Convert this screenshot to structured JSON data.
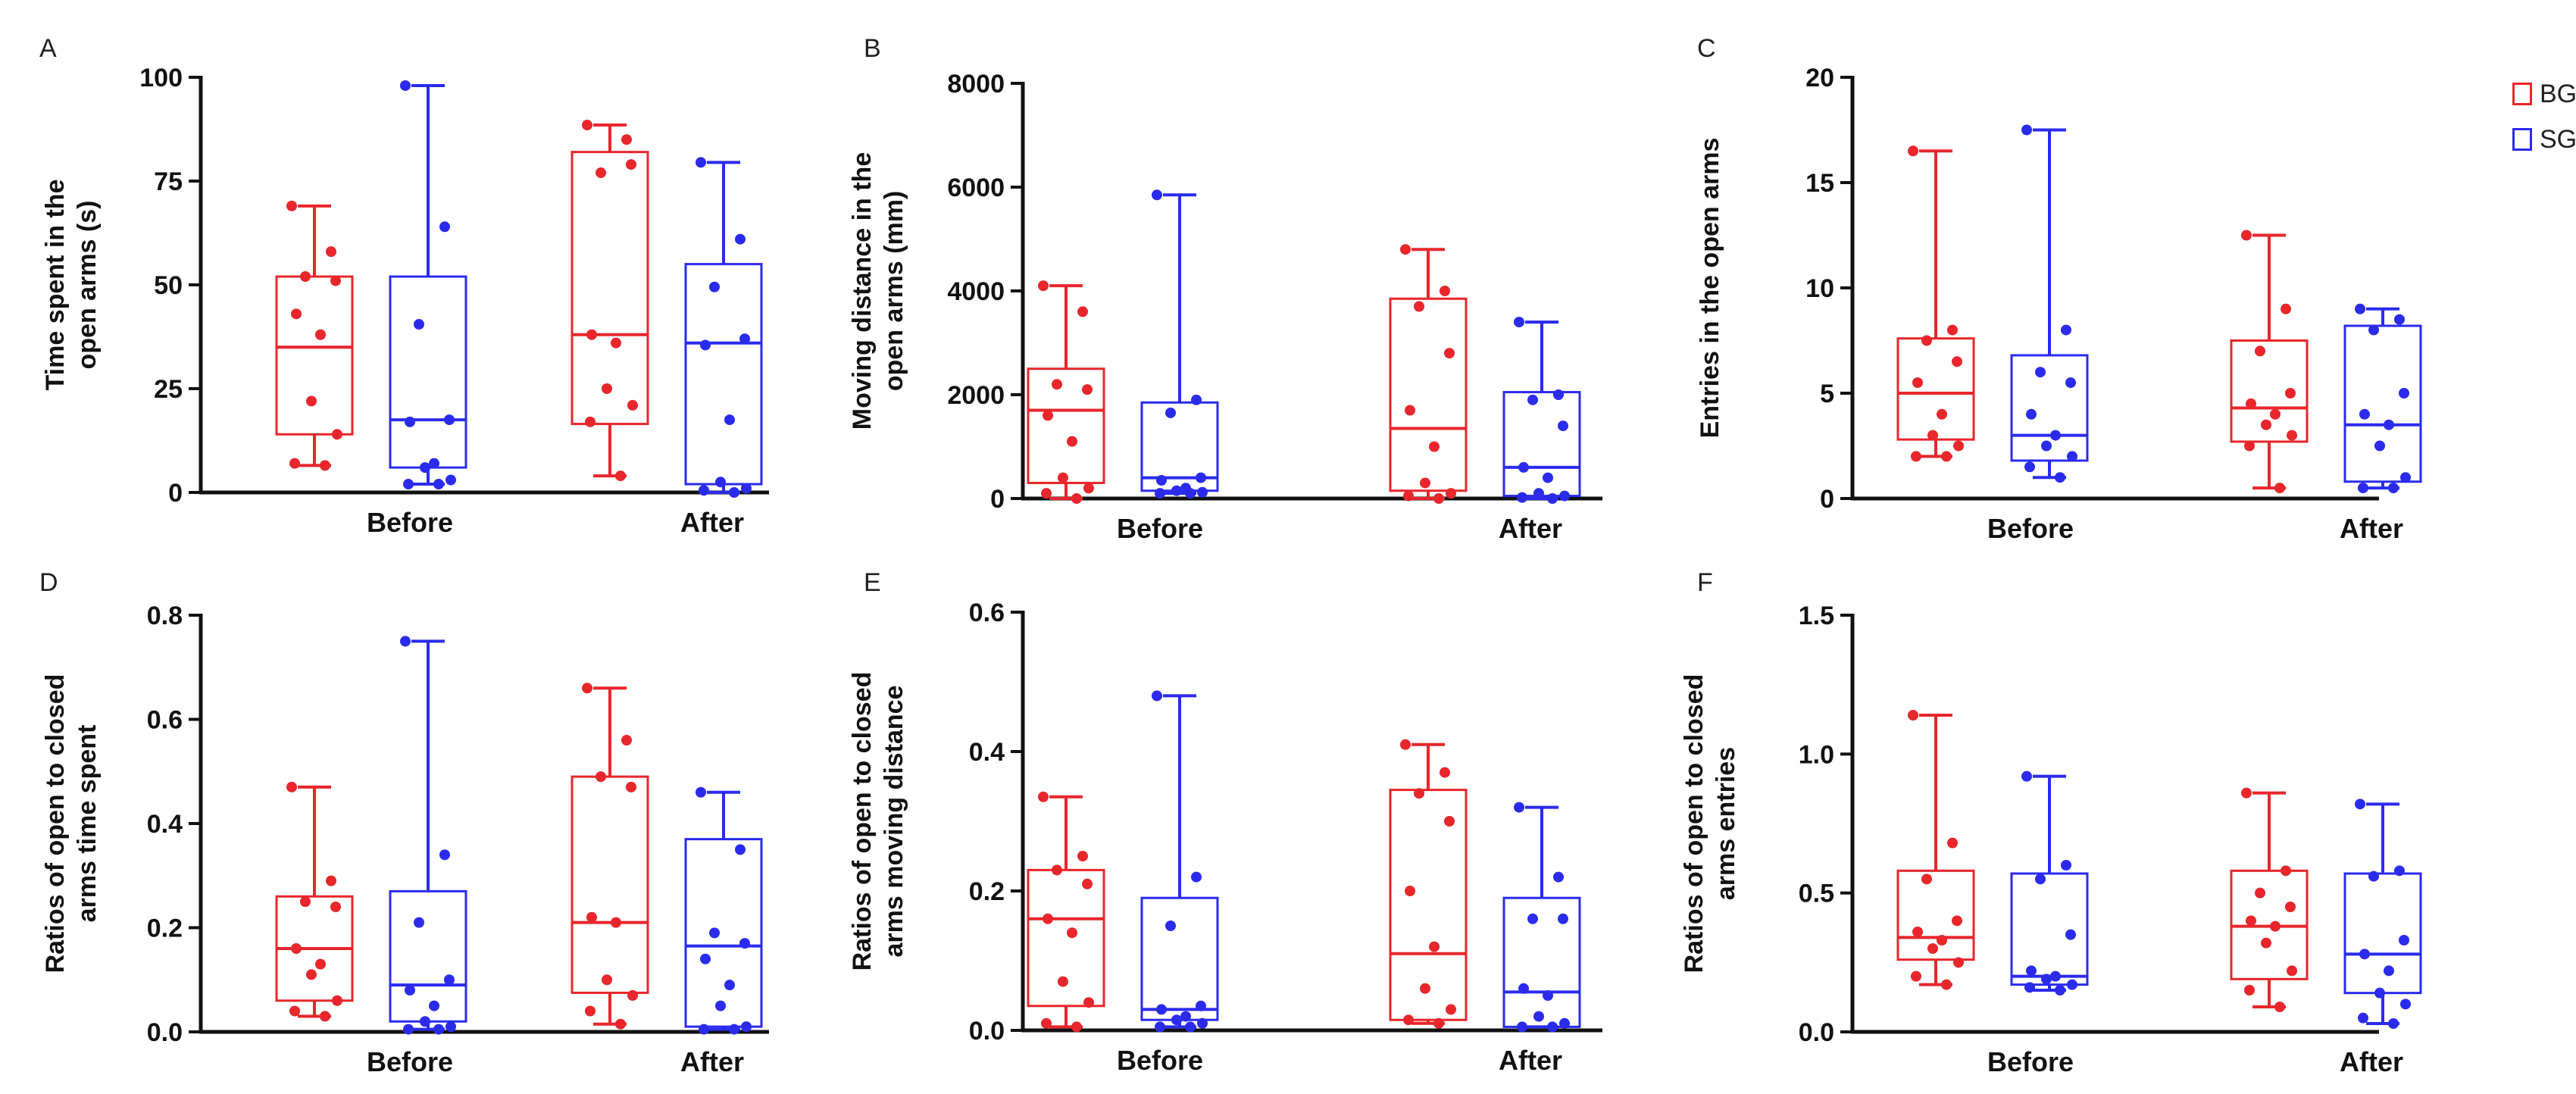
{
  "legend": [
    {
      "name": "BG",
      "color": "#e8262b"
    },
    {
      "name": "SG",
      "color": "#2b2bee"
    }
  ],
  "chart_data": [
    {
      "panel": "A",
      "type": "box",
      "ylabel": [
        "Time spent in the",
        "open arms (s)"
      ],
      "ylim": [
        0,
        100
      ],
      "yticks": [
        "0",
        "25",
        "50",
        "75",
        "100"
      ],
      "tickvals": [
        0,
        25,
        50,
        75,
        100
      ],
      "categories": [
        "Before",
        "After"
      ],
      "series": [
        {
          "name": "BG",
          "color": "#e8262b",
          "boxes": [
            {
              "min": 6.5,
              "q1": 14,
              "median": 35,
              "q3": 52,
              "max": 69,
              "points": [
                69,
                58,
                52,
                51,
                43,
                38,
                22,
                14,
                7,
                6.5
              ]
            },
            {
              "min": 4,
              "q1": 16.5,
              "median": 38,
              "q3": 82,
              "max": 88.5,
              "points": [
                88.5,
                85,
                77,
                79,
                38,
                36,
                25,
                21,
                17,
                4
              ]
            }
          ]
        },
        {
          "name": "SG",
          "color": "#2b2bee",
          "boxes": [
            {
              "min": 2,
              "q1": 6,
              "median": 17.5,
              "q3": 52,
              "max": 98,
              "points": [
                98,
                64,
                40.5,
                17.5,
                17,
                7,
                6,
                3,
                2,
                2
              ]
            },
            {
              "min": 0,
              "q1": 2,
              "median": 36,
              "q3": 55,
              "max": 79.5,
              "points": [
                79.5,
                61,
                49.5,
                37,
                35.5,
                17.5,
                2.5,
                1,
                0.5,
                0
              ]
            }
          ]
        }
      ]
    },
    {
      "panel": "B",
      "type": "box",
      "ylabel": [
        "Moving distance in the",
        "open arms (mm)"
      ],
      "ylim": [
        0,
        8000
      ],
      "yticks": [
        "0",
        "2000",
        "4000",
        "6000",
        "8000"
      ],
      "tickvals": [
        0,
        2000,
        4000,
        6000,
        8000
      ],
      "categories": [
        "Before",
        "After"
      ],
      "series": [
        {
          "name": "BG",
          "color": "#e8262b",
          "boxes": [
            {
              "min": 0,
              "q1": 300,
              "median": 1700,
              "q3": 2500,
              "max": 4100,
              "points": [
                4100,
                3600,
                2200,
                2100,
                1600,
                1100,
                400,
                200,
                100,
                0
              ]
            },
            {
              "min": 0,
              "q1": 150,
              "median": 1350,
              "q3": 3850,
              "max": 4800,
              "points": [
                4800,
                4000,
                3700,
                2800,
                1700,
                1000,
                300,
                100,
                50,
                0
              ]
            }
          ]
        },
        {
          "name": "SG",
          "color": "#2b2bee",
          "boxes": [
            {
              "min": 100,
              "q1": 150,
              "median": 400,
              "q3": 1850,
              "max": 5850,
              "points": [
                5850,
                1900,
                1650,
                400,
                350,
                200,
                150,
                120,
                100,
                100
              ]
            },
            {
              "min": 0,
              "q1": 50,
              "median": 600,
              "q3": 2050,
              "max": 3400,
              "points": [
                3400,
                2000,
                1900,
                1400,
                600,
                400,
                100,
                50,
                20,
                0
              ]
            }
          ]
        }
      ]
    },
    {
      "panel": "C",
      "type": "box",
      "ylabel": [
        "Entries in the open arms"
      ],
      "ylim": [
        0,
        20
      ],
      "yticks": [
        "0",
        "5",
        "10",
        "15",
        "20"
      ],
      "tickvals": [
        0,
        5,
        10,
        15,
        20
      ],
      "categories": [
        "Before",
        "After"
      ],
      "series": [
        {
          "name": "BG",
          "color": "#e8262b",
          "boxes": [
            {
              "min": 2,
              "q1": 2.8,
              "median": 5,
              "q3": 7.6,
              "max": 16.5,
              "points": [
                16.5,
                8,
                7.5,
                6.5,
                5.5,
                4,
                3,
                2.5,
                2,
                2
              ]
            },
            {
              "min": 0.5,
              "q1": 2.7,
              "median": 4.3,
              "q3": 7.5,
              "max": 12.5,
              "points": [
                12.5,
                9,
                7,
                5,
                4.5,
                4,
                3.5,
                3,
                2.5,
                0.5
              ]
            }
          ]
        },
        {
          "name": "SG",
          "color": "#2b2bee",
          "boxes": [
            {
              "min": 1,
              "q1": 1.8,
              "median": 3,
              "q3": 6.8,
              "max": 17.5,
              "points": [
                17.5,
                8,
                6,
                5.5,
                4,
                3,
                2.5,
                2,
                1.5,
                1
              ]
            },
            {
              "min": 0.5,
              "q1": 0.8,
              "median": 3.5,
              "q3": 8.2,
              "max": 9,
              "points": [
                9,
                8.5,
                8,
                5,
                4,
                3.5,
                2.5,
                1,
                0.5,
                0.5
              ]
            }
          ]
        }
      ]
    },
    {
      "panel": "D",
      "type": "box",
      "ylabel": [
        "Ratios of open to closed",
        "arms time spent"
      ],
      "ylim": [
        0,
        0.8
      ],
      "yticks": [
        "0.0",
        "0.2",
        "0.4",
        "0.6",
        "0.8"
      ],
      "tickvals": [
        0,
        0.2,
        0.4,
        0.6,
        0.8
      ],
      "categories": [
        "Before",
        "After"
      ],
      "series": [
        {
          "name": "BG",
          "color": "#e8262b",
          "boxes": [
            {
              "min": 0.03,
              "q1": 0.06,
              "median": 0.16,
              "q3": 0.26,
              "max": 0.47,
              "points": [
                0.47,
                0.29,
                0.25,
                0.24,
                0.16,
                0.13,
                0.11,
                0.06,
                0.04,
                0.03
              ]
            },
            {
              "min": 0.015,
              "q1": 0.075,
              "median": 0.21,
              "q3": 0.49,
              "max": 0.66,
              "points": [
                0.66,
                0.56,
                0.49,
                0.47,
                0.22,
                0.21,
                0.1,
                0.07,
                0.04,
                0.015
              ]
            }
          ]
        },
        {
          "name": "SG",
          "color": "#2b2bee",
          "boxes": [
            {
              "min": 0.005,
              "q1": 0.02,
              "median": 0.09,
              "q3": 0.27,
              "max": 0.75,
              "points": [
                0.75,
                0.34,
                0.21,
                0.1,
                0.08,
                0.05,
                0.02,
                0.01,
                0.005,
                0.005
              ]
            },
            {
              "min": 0.005,
              "q1": 0.01,
              "median": 0.165,
              "q3": 0.37,
              "max": 0.46,
              "points": [
                0.46,
                0.35,
                0.19,
                0.17,
                0.14,
                0.09,
                0.05,
                0.01,
                0.005,
                0.005
              ]
            }
          ]
        }
      ]
    },
    {
      "panel": "E",
      "type": "box",
      "ylabel": [
        "Ratios of open to closed",
        "arms moving distance"
      ],
      "ylim": [
        0,
        0.6
      ],
      "yticks": [
        "0.0",
        "0.2",
        "0.4",
        "0.6"
      ],
      "tickvals": [
        0,
        0.2,
        0.4,
        0.6
      ],
      "categories": [
        "Before",
        "After"
      ],
      "series": [
        {
          "name": "BG",
          "color": "#e8262b",
          "boxes": [
            {
              "min": 0.005,
              "q1": 0.035,
              "median": 0.16,
              "q3": 0.23,
              "max": 0.335,
              "points": [
                0.335,
                0.25,
                0.23,
                0.21,
                0.16,
                0.14,
                0.07,
                0.04,
                0.01,
                0.005
              ]
            },
            {
              "min": 0.01,
              "q1": 0.015,
              "median": 0.11,
              "q3": 0.345,
              "max": 0.41,
              "points": [
                0.41,
                0.37,
                0.34,
                0.3,
                0.2,
                0.12,
                0.06,
                0.03,
                0.015,
                0.01
              ]
            }
          ]
        },
        {
          "name": "SG",
          "color": "#2b2bee",
          "boxes": [
            {
              "min": 0.005,
              "q1": 0.015,
              "median": 0.03,
              "q3": 0.19,
              "max": 0.48,
              "points": [
                0.48,
                0.22,
                0.15,
                0.035,
                0.03,
                0.02,
                0.015,
                0.01,
                0.005,
                0.005
              ]
            },
            {
              "min": 0.005,
              "q1": 0.005,
              "median": 0.055,
              "q3": 0.19,
              "max": 0.32,
              "points": [
                0.32,
                0.22,
                0.16,
                0.16,
                0.06,
                0.05,
                0.02,
                0.01,
                0.005,
                0.005
              ]
            }
          ]
        }
      ]
    },
    {
      "panel": "F",
      "type": "box",
      "ylabel": [
        "Ratios of open to closed",
        "arms entries"
      ],
      "ylim": [
        0,
        1.5
      ],
      "yticks": [
        "0.0",
        "0.5",
        "1.0",
        "1.5"
      ],
      "tickvals": [
        0,
        0.5,
        1,
        1.5
      ],
      "categories": [
        "Before",
        "After"
      ],
      "series": [
        {
          "name": "BG",
          "color": "#e8262b",
          "boxes": [
            {
              "min": 0.17,
              "q1": 0.26,
              "median": 0.34,
              "q3": 0.58,
              "max": 1.14,
              "points": [
                1.14,
                0.68,
                0.55,
                0.4,
                0.36,
                0.33,
                0.3,
                0.25,
                0.2,
                0.17
              ]
            },
            {
              "min": 0.09,
              "q1": 0.19,
              "median": 0.38,
              "q3": 0.58,
              "max": 0.86,
              "points": [
                0.86,
                0.58,
                0.5,
                0.45,
                0.4,
                0.38,
                0.32,
                0.22,
                0.15,
                0.09
              ]
            }
          ]
        },
        {
          "name": "SG",
          "color": "#2b2bee",
          "boxes": [
            {
              "min": 0.15,
              "q1": 0.17,
              "median": 0.2,
              "q3": 0.57,
              "max": 0.92,
              "points": [
                0.92,
                0.6,
                0.55,
                0.35,
                0.22,
                0.2,
                0.19,
                0.17,
                0.16,
                0.15
              ]
            },
            {
              "min": 0.03,
              "q1": 0.14,
              "median": 0.28,
              "q3": 0.57,
              "max": 0.82,
              "points": [
                0.82,
                0.58,
                0.56,
                0.33,
                0.28,
                0.22,
                0.14,
                0.1,
                0.05,
                0.03
              ]
            }
          ]
        }
      ]
    }
  ]
}
